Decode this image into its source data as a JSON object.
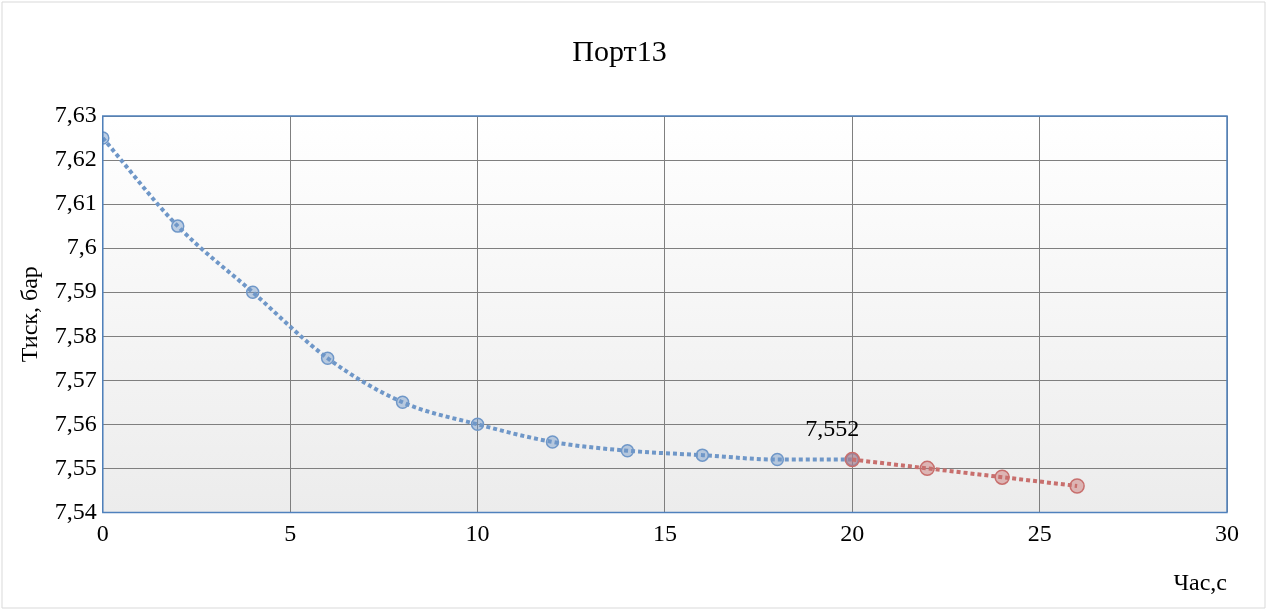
{
  "chart_data": {
    "type": "line",
    "title": "Порт13",
    "xlabel": "Час,с",
    "ylabel": "Тиск, бар",
    "xlim": [
      0,
      30
    ],
    "xticks": [
      0,
      5,
      10,
      15,
      20,
      25,
      30
    ],
    "ylim": [
      7.54,
      7.63
    ],
    "yticks": [
      {
        "value": 7.54,
        "label": "7,54"
      },
      {
        "value": 7.55,
        "label": "7,55"
      },
      {
        "value": 7.56,
        "label": "7,56"
      },
      {
        "value": 7.57,
        "label": "7,57"
      },
      {
        "value": 7.58,
        "label": "7,58"
      },
      {
        "value": 7.59,
        "label": "7,59"
      },
      {
        "value": 7.6,
        "label": "7,6"
      },
      {
        "value": 7.61,
        "label": "7,61"
      },
      {
        "value": 7.62,
        "label": "7,62"
      },
      {
        "value": 7.63,
        "label": "7,63"
      }
    ],
    "grid": true,
    "legend": false,
    "marker": "circle",
    "line_style": "dotted",
    "annotations": [
      {
        "text": "7,552",
        "x": 20,
        "y": 7.552
      }
    ],
    "series": [
      {
        "color": "#6f97c8",
        "x": [
          0,
          2,
          4,
          6,
          8,
          10,
          12,
          14,
          16,
          18,
          20
        ],
        "values": [
          7.625,
          7.605,
          7.59,
          7.575,
          7.565,
          7.56,
          7.556,
          7.554,
          7.553,
          7.552,
          7.552
        ]
      },
      {
        "color": "#c86f6d",
        "x": [
          20,
          22,
          24,
          26
        ],
        "values": [
          7.552,
          7.55,
          7.548,
          7.546
        ]
      }
    ]
  }
}
